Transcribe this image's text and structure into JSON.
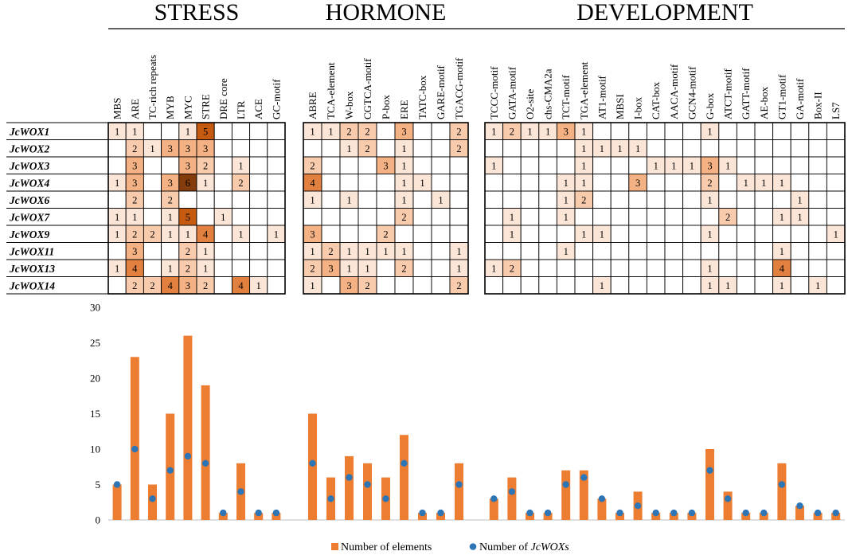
{
  "chart_data": [
    {
      "type": "heatmap",
      "title": "",
      "groups": [
        {
          "label": "STRESS",
          "motifs": [
            "MBS",
            "ARE",
            "TC-rich repeats",
            "MYB",
            "MYC",
            "STRE",
            "DRE core",
            "LTR",
            "ACE",
            "GC-motif"
          ]
        },
        {
          "label": "HORMONE",
          "motifs": [
            "ABRE",
            "TCA-element",
            "W-box",
            "CGTCA-motif",
            "P-box",
            "ERE",
            "TATC-box",
            "GARE-motif",
            "TGACG-motif"
          ]
        },
        {
          "label": "DEVELOPMENT",
          "motifs": [
            "TCCC-motif",
            "GATA-motif",
            "O2-site",
            "chs-CMA2a",
            "TCT-motif",
            "TGA-element",
            "AT1-motif",
            "MBSI",
            "I-box",
            "CAT-box",
            "AACA-motif",
            "GCN4-motif",
            "G-box",
            "ATCT-motif",
            "GATT-motif",
            "AE-box",
            "GT1-motif",
            "GA-motif",
            "Box-II",
            "LS7"
          ]
        }
      ],
      "genes": [
        "JcWOX1",
        "JcWOX2",
        "JcWOX3",
        "JcWOX4",
        "JcWOX6",
        "JcWOX7",
        "JcWOX9",
        "JcWOX11",
        "JcWOX13",
        "JcWOX14"
      ],
      "values": [
        [
          [
            1,
            1,
            null,
            null,
            1,
            5,
            null,
            null,
            null,
            null
          ],
          [
            1,
            1,
            2,
            2,
            null,
            3,
            null,
            null,
            2
          ],
          [
            1,
            2,
            1,
            1,
            3,
            1,
            null,
            null,
            null,
            null,
            null,
            null,
            1,
            null,
            null,
            null,
            null,
            null,
            null,
            null
          ]
        ],
        [
          [
            null,
            2,
            1,
            3,
            3,
            3,
            null,
            null,
            null,
            null
          ],
          [
            null,
            null,
            1,
            2,
            null,
            1,
            null,
            null,
            2
          ],
          [
            null,
            null,
            null,
            null,
            null,
            1,
            1,
            1,
            1,
            null,
            null,
            null,
            null,
            null,
            null,
            null,
            null,
            null,
            null,
            null
          ]
        ],
        [
          [
            null,
            3,
            null,
            null,
            3,
            2,
            null,
            1,
            null,
            null
          ],
          [
            2,
            null,
            null,
            null,
            3,
            1,
            null,
            null,
            null
          ],
          [
            1,
            null,
            null,
            null,
            null,
            1,
            null,
            null,
            null,
            1,
            1,
            1,
            3,
            1,
            null,
            null,
            null,
            null,
            null,
            null
          ]
        ],
        [
          [
            1,
            3,
            null,
            3,
            6,
            1,
            null,
            2,
            null,
            null
          ],
          [
            4,
            null,
            null,
            null,
            null,
            1,
            1,
            null,
            null
          ],
          [
            null,
            null,
            null,
            null,
            1,
            1,
            null,
            null,
            3,
            null,
            null,
            null,
            2,
            null,
            1,
            1,
            1,
            null,
            null,
            null
          ]
        ],
        [
          [
            null,
            2,
            null,
            2,
            null,
            null,
            null,
            null,
            null,
            null
          ],
          [
            1,
            null,
            1,
            null,
            null,
            1,
            null,
            1,
            null
          ],
          [
            null,
            null,
            null,
            null,
            1,
            2,
            null,
            null,
            null,
            null,
            null,
            null,
            1,
            null,
            null,
            null,
            null,
            1,
            null,
            null
          ]
        ],
        [
          [
            1,
            1,
            null,
            1,
            5,
            null,
            1,
            null,
            null,
            null
          ],
          [
            null,
            null,
            null,
            null,
            null,
            2,
            null,
            null,
            null
          ],
          [
            null,
            1,
            null,
            null,
            1,
            null,
            null,
            null,
            null,
            null,
            null,
            null,
            null,
            2,
            null,
            null,
            1,
            1,
            null,
            null
          ]
        ],
        [
          [
            1,
            2,
            2,
            1,
            1,
            4,
            null,
            1,
            null,
            1
          ],
          [
            3,
            null,
            null,
            null,
            2,
            null,
            null,
            null,
            null
          ],
          [
            null,
            1,
            null,
            null,
            null,
            1,
            1,
            null,
            null,
            null,
            null,
            null,
            1,
            null,
            null,
            null,
            null,
            null,
            null,
            1
          ]
        ],
        [
          [
            null,
            3,
            null,
            null,
            2,
            1,
            null,
            null,
            null,
            null
          ],
          [
            1,
            2,
            1,
            1,
            1,
            1,
            null,
            null,
            1
          ],
          [
            null,
            null,
            null,
            null,
            1,
            null,
            null,
            null,
            null,
            null,
            null,
            null,
            null,
            null,
            null,
            null,
            1,
            null,
            null,
            null
          ]
        ],
        [
          [
            1,
            4,
            null,
            1,
            2,
            1,
            null,
            null,
            null,
            null
          ],
          [
            2,
            3,
            1,
            1,
            null,
            2,
            null,
            null,
            1
          ],
          [
            1,
            2,
            null,
            null,
            null,
            null,
            null,
            null,
            null,
            null,
            null,
            null,
            1,
            null,
            null,
            null,
            4,
            null,
            null,
            null
          ]
        ],
        [
          [
            null,
            2,
            2,
            4,
            3,
            2,
            null,
            4,
            1,
            null
          ],
          [
            1,
            null,
            3,
            2,
            null,
            null,
            null,
            null,
            2
          ],
          [
            null,
            null,
            null,
            null,
            null,
            null,
            1,
            null,
            null,
            null,
            null,
            null,
            1,
            1,
            null,
            null,
            1,
            null,
            1,
            null
          ]
        ]
      ],
      "color_scale": {
        "1": "#fbe5d6",
        "2": "#f8cbad",
        "3": "#f4b183",
        "4": "#e2803f",
        "5": "#c55a11",
        "6": "#843c0c"
      }
    },
    {
      "type": "bar",
      "title": "",
      "categories": [
        "MBS",
        "ARE",
        "TC-rich repeats",
        "MYB",
        "MYC",
        "STRE",
        "DRE core",
        "LTR",
        "ACE",
        "GC-motif",
        "ABRE",
        "TCA-element",
        "W-box",
        "CGTCA-motif",
        "P-box",
        "ERE",
        "TATC-box",
        "GARE-motif",
        "TGACG-motif",
        "TCCC-motif",
        "GATA-motif",
        "O2-site",
        "chs-CMA2a",
        "TCT-motif",
        "TGA-element",
        "AT1-motif",
        "MBSI",
        "I-box",
        "CAT-box",
        "AACA-motif",
        "GCN4-motif",
        "G-box",
        "ATCT-motif",
        "GATT-motif",
        "AE-box",
        "GT1-motif",
        "GA-motif",
        "Box-II",
        "LS7"
      ],
      "series": [
        {
          "name": "Number of elements",
          "kind": "bar",
          "color": "#ed7d31",
          "values": [
            5,
            23,
            5,
            15,
            26,
            19,
            1,
            8,
            1,
            1,
            15,
            6,
            9,
            8,
            6,
            12,
            1,
            1,
            8,
            3,
            6,
            1,
            1,
            7,
            7,
            3,
            1,
            4,
            1,
            1,
            1,
            10,
            4,
            1,
            1,
            8,
            2,
            1,
            1
          ]
        },
        {
          "name": "Number of JcWOXs",
          "kind": "scatter",
          "color": "#2e75b6",
          "values": [
            5,
            10,
            3,
            7,
            9,
            8,
            1,
            4,
            1,
            1,
            8,
            3,
            6,
            5,
            3,
            8,
            1,
            1,
            5,
            3,
            4,
            1,
            1,
            5,
            6,
            3,
            1,
            2,
            1,
            1,
            1,
            7,
            3,
            1,
            1,
            5,
            2,
            1,
            1
          ]
        }
      ],
      "ylim": [
        0,
        30
      ],
      "yticks": [
        "0",
        "5",
        "10",
        "15",
        "20",
        "25",
        "30"
      ],
      "xlabel": "",
      "ylabel": "",
      "legend": {
        "position": "bottom-center",
        "items": [
          {
            "marker": "square",
            "text": "Number of elements",
            "italic": ""
          },
          {
            "marker": "circle",
            "text": "Number of ",
            "italic": "JcWOXs"
          }
        ]
      }
    }
  ]
}
